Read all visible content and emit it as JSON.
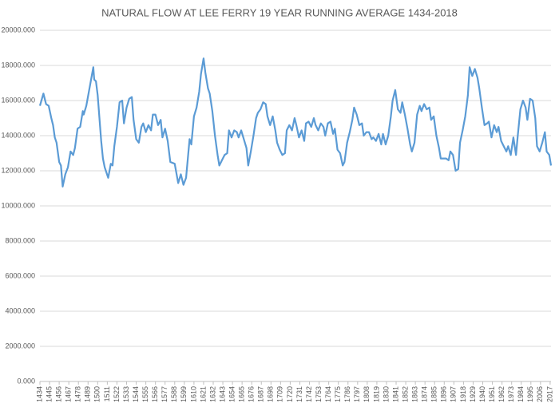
{
  "chart_data": {
    "type": "line",
    "title": "NATURAL FLOW AT LEE FERRY 19 YEAR RUNNING AVERAGE 1434-2018",
    "xlim": [
      1434,
      2018
    ],
    "xticks": [
      1434,
      1445,
      1456,
      1467,
      1478,
      1489,
      1500,
      1511,
      1522,
      1533,
      1544,
      1555,
      1566,
      1577,
      1588,
      1599,
      1610,
      1621,
      1632,
      1643,
      1654,
      1665,
      1676,
      1687,
      1698,
      1709,
      1720,
      1731,
      1742,
      1753,
      1764,
      1775,
      1786,
      1797,
      1808,
      1819,
      1830,
      1841,
      1852,
      1863,
      1874,
      1885,
      1896,
      1907,
      1918,
      1929,
      1940,
      1951,
      1962,
      1973,
      1984,
      1995,
      2006,
      2017
    ],
    "ylim": [
      0,
      20000
    ],
    "yticks": [
      {
        "value": 0,
        "label": "0.000"
      },
      {
        "value": 2000,
        "label": "2000.000"
      },
      {
        "value": 4000,
        "label": "4000.000"
      },
      {
        "value": 6000,
        "label": "6000.000"
      },
      {
        "value": 8000,
        "label": "8000.000"
      },
      {
        "value": 10000,
        "label": "10000.000"
      },
      {
        "value": 12000,
        "label": "12000.000"
      },
      {
        "value": 14000,
        "label": "14000.000"
      },
      {
        "value": 16000,
        "label": "16000.000"
      },
      {
        "value": 18000,
        "label": "18000.000"
      },
      {
        "value": 20000,
        "label": "20000.000"
      }
    ],
    "grid": true,
    "series": [
      {
        "color": "#5b9bd5",
        "x": [
          1434,
          1438,
          1441,
          1444,
          1447,
          1449,
          1451,
          1453,
          1456,
          1458,
          1460,
          1463,
          1466,
          1469,
          1472,
          1474,
          1477,
          1480,
          1483,
          1484,
          1487,
          1491,
          1495,
          1496,
          1498,
          1500,
          1502,
          1504,
          1506,
          1508,
          1512,
          1515,
          1517,
          1519,
          1522,
          1525,
          1528,
          1530,
          1533,
          1536,
          1539,
          1541,
          1544,
          1547,
          1550,
          1552,
          1555,
          1558,
          1561,
          1563,
          1566,
          1569,
          1572,
          1574,
          1577,
          1580,
          1583,
          1588,
          1592,
          1595,
          1598,
          1601,
          1605,
          1607,
          1610,
          1613,
          1616,
          1618,
          1621,
          1623,
          1626,
          1628,
          1631,
          1634,
          1637,
          1639,
          1642,
          1645,
          1648,
          1650,
          1653,
          1656,
          1659,
          1661,
          1664,
          1667,
          1670,
          1672,
          1675,
          1678,
          1681,
          1683,
          1686,
          1689,
          1692,
          1694,
          1697,
          1700,
          1703,
          1705,
          1708,
          1711,
          1714,
          1716,
          1719,
          1722,
          1725,
          1727,
          1730,
          1733,
          1736,
          1738,
          1741,
          1744,
          1747,
          1749,
          1752,
          1755,
          1758,
          1760,
          1763,
          1766,
          1769,
          1771,
          1774,
          1777,
          1780,
          1782,
          1785,
          1788,
          1791,
          1793,
          1796,
          1799,
          1802,
          1804,
          1807,
          1810,
          1813,
          1815,
          1818,
          1821,
          1824,
          1826,
          1829,
          1832,
          1835,
          1837,
          1840,
          1843,
          1846,
          1848,
          1851,
          1854,
          1857,
          1859,
          1862,
          1865,
          1868,
          1870,
          1873,
          1876,
          1879,
          1881,
          1884,
          1887,
          1890,
          1892,
          1895,
          1898,
          1901,
          1903,
          1906,
          1909,
          1912,
          1914,
          1917,
          1920,
          1923,
          1925,
          1928,
          1931,
          1934,
          1936,
          1939,
          1942,
          1945,
          1947,
          1950,
          1953,
          1956,
          1958,
          1961,
          1964,
          1967,
          1969,
          1972,
          1975,
          1978,
          1980,
          1983,
          1986,
          1989,
          1991,
          1994,
          1997,
          2000,
          2002,
          2005,
          2008,
          2011,
          2013,
          2016,
          2018
        ],
        "values": [
          15700,
          16400,
          15800,
          15700,
          15000,
          14600,
          13900,
          13600,
          12500,
          12300,
          11100,
          11800,
          12200,
          13100,
          12900,
          13300,
          14400,
          14500,
          15400,
          15200,
          15700,
          16800,
          17900,
          17200,
          17100,
          16300,
          15000,
          13700,
          12700,
          12200,
          11600,
          12400,
          12300,
          13400,
          14500,
          15900,
          16000,
          14700,
          15600,
          16100,
          16200,
          14900,
          13800,
          13600,
          14500,
          14700,
          14200,
          14600,
          14300,
          15200,
          15200,
          14600,
          14900,
          13900,
          14400,
          13700,
          12500,
          12400,
          11300,
          11800,
          11200,
          11600,
          13800,
          13500,
          15100,
          15600,
          16500,
          17500,
          18400,
          17600,
          16700,
          16400,
          15400,
          14000,
          12900,
          12300,
          12600,
          12900,
          13000,
          14300,
          13900,
          14300,
          14200,
          13900,
          14300,
          13800,
          13300,
          12300,
          13100,
          14000,
          15000,
          15300,
          15500,
          15900,
          15800,
          15100,
          14600,
          15100,
          14300,
          13600,
          13200,
          12900,
          13000,
          14300,
          14600,
          14300,
          15000,
          14600,
          13900,
          14300,
          13700,
          14700,
          14800,
          14500,
          15000,
          14600,
          14300,
          14700,
          14500,
          14000,
          14700,
          14800,
          14100,
          14400,
          13200,
          13000,
          12300,
          12500,
          13600,
          14200,
          14900,
          15600,
          15200,
          14600,
          14700,
          14000,
          14200,
          14200,
          13800,
          13900,
          13700,
          14100,
          13500,
          14100,
          13500,
          14000,
          15100,
          16000,
          16600,
          15500,
          15300,
          15900,
          15200,
          14400,
          13500,
          13100,
          13600,
          15200,
          15700,
          15400,
          15800,
          15500,
          15600,
          14900,
          15100,
          14000,
          13300,
          12700,
          12700,
          12700,
          12600,
          13100,
          12900,
          12000,
          12100,
          13600,
          14300,
          15100,
          16300,
          17900,
          17400,
          17800,
          17300,
          16700,
          15600,
          14600,
          14700,
          14800,
          13900,
          14600,
          14200,
          14500,
          13700,
          13400,
          13100,
          13400,
          12900,
          13900,
          12900,
          14000,
          15500,
          16000,
          15600,
          14900,
          16100,
          16000,
          15000,
          13400,
          13100,
          13600,
          14200,
          13100,
          12900,
          12300
        ]
      }
    ]
  }
}
